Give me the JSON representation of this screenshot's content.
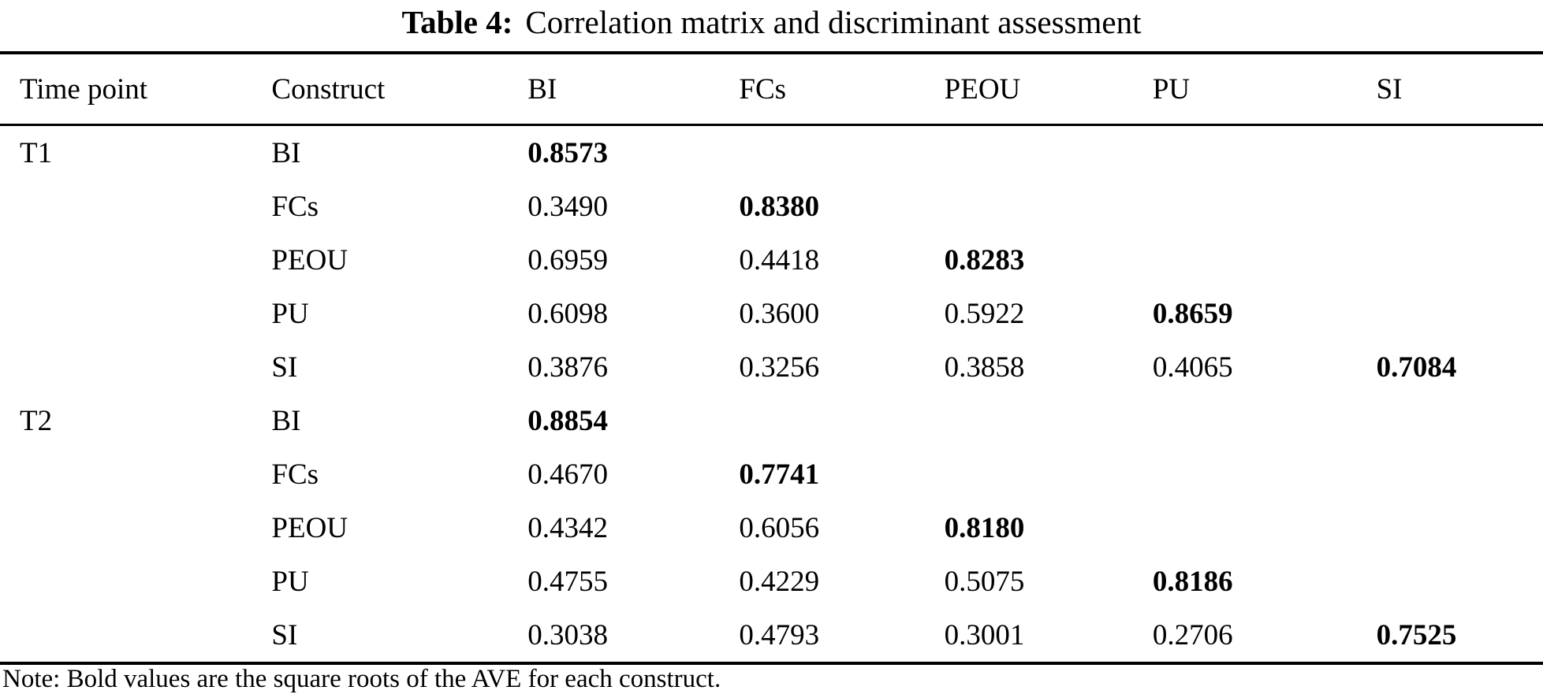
{
  "title": {
    "label": "Table 4:",
    "text": "Correlation matrix and discriminant assessment"
  },
  "table": {
    "columns": [
      "Time point",
      "Construct",
      "BI",
      "FCs",
      "PEOU",
      "PU",
      "SI"
    ],
    "rows": [
      {
        "cells": [
          "T1",
          "BI",
          "0.8573",
          "",
          "",
          "",
          ""
        ],
        "bold_cols": [
          2
        ]
      },
      {
        "cells": [
          "",
          "FCs",
          "0.3490",
          "0.8380",
          "",
          "",
          ""
        ],
        "bold_cols": [
          3
        ]
      },
      {
        "cells": [
          "",
          "PEOU",
          "0.6959",
          "0.4418",
          "0.8283",
          "",
          ""
        ],
        "bold_cols": [
          4
        ]
      },
      {
        "cells": [
          "",
          "PU",
          "0.6098",
          "0.3600",
          "0.5922",
          "0.8659",
          ""
        ],
        "bold_cols": [
          5
        ]
      },
      {
        "cells": [
          "",
          "SI",
          "0.3876",
          "0.3256",
          "0.3858",
          "0.4065",
          "0.7084"
        ],
        "bold_cols": [
          6
        ]
      },
      {
        "cells": [
          "T2",
          "BI",
          "0.8854",
          "",
          "",
          "",
          ""
        ],
        "bold_cols": [
          2
        ]
      },
      {
        "cells": [
          "",
          "FCs",
          "0.4670",
          "0.7741",
          "",
          "",
          ""
        ],
        "bold_cols": [
          3
        ]
      },
      {
        "cells": [
          "",
          "PEOU",
          "0.4342",
          "0.6056",
          "0.8180",
          "",
          ""
        ],
        "bold_cols": [
          4
        ]
      },
      {
        "cells": [
          "",
          "PU",
          "0.4755",
          "0.4229",
          "0.5075",
          "0.8186",
          ""
        ],
        "bold_cols": [
          5
        ]
      },
      {
        "cells": [
          "",
          "SI",
          "0.3038",
          "0.4793",
          "0.3001",
          "0.2706",
          "0.7525"
        ],
        "bold_cols": [
          6
        ]
      }
    ]
  },
  "note": "Note: Bold values are the square roots of the AVE for each construct.",
  "colors": {
    "text": "#000000",
    "background": "#ffffff",
    "rule": "#000000"
  }
}
